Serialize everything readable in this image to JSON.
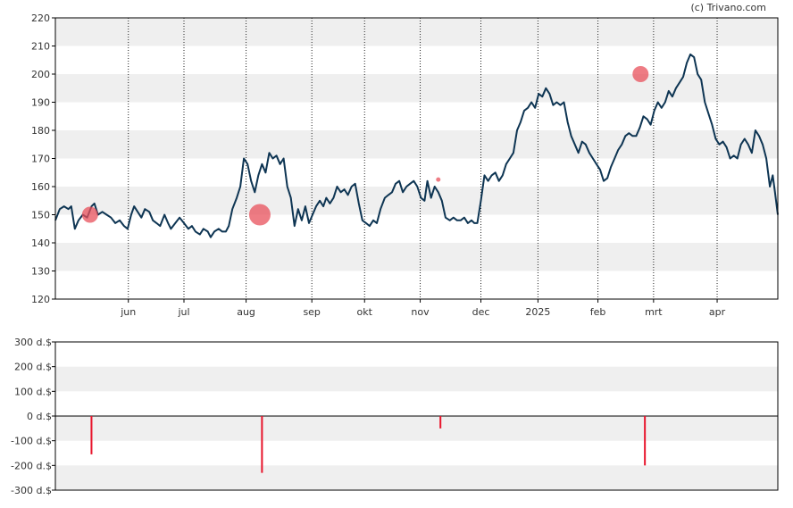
{
  "copyright": "(c) Trivano.com",
  "colors": {
    "price_line": "#0e3553",
    "marker": "#e8505b",
    "band": "#efefef",
    "frame": "#000000",
    "volume_bar": "#e8152c"
  },
  "chart_data": [
    {
      "type": "line",
      "title": "",
      "ylim": [
        120,
        220
      ],
      "yticks": [
        120,
        130,
        140,
        150,
        160,
        170,
        180,
        190,
        200,
        210,
        220
      ],
      "ytick_labels": [
        "120",
        "130",
        "140",
        "150",
        "160",
        "170",
        "180",
        "190",
        "200",
        "210",
        "220"
      ],
      "grid": "vertical-dotted",
      "month_ticks": [
        {
          "label": "jun",
          "t": 10.1
        },
        {
          "label": "jul",
          "t": 17.8
        },
        {
          "label": "aug",
          "t": 26.4
        },
        {
          "label": "sep",
          "t": 35.5
        },
        {
          "label": "okt",
          "t": 42.8
        },
        {
          "label": "nov",
          "t": 50.5
        },
        {
          "label": "dec",
          "t": 58.9
        },
        {
          "label": "2025",
          "t": 66.8
        },
        {
          "label": "feb",
          "t": 75.1
        },
        {
          "label": "mrt",
          "t": 82.8
        },
        {
          "label": "apr",
          "t": 91.6
        }
      ],
      "x_range": [
        0,
        100
      ],
      "series": [
        {
          "points": [
            [
              0,
              148
            ],
            [
              0.6,
              152
            ],
            [
              1.2,
              153
            ],
            [
              1.8,
              152
            ],
            [
              2.2,
              153
            ],
            [
              2.7,
              145
            ],
            [
              3.2,
              148
            ],
            [
              3.8,
              150
            ],
            [
              4.4,
              149
            ],
            [
              5.0,
              153
            ],
            [
              5.4,
              154
            ],
            [
              5.9,
              150
            ],
            [
              6.5,
              151
            ],
            [
              7.1,
              150
            ],
            [
              7.7,
              149
            ],
            [
              8.3,
              147
            ],
            [
              8.9,
              148
            ],
            [
              9.5,
              146
            ],
            [
              10.0,
              145
            ],
            [
              10.5,
              150
            ],
            [
              10.9,
              153
            ],
            [
              11.4,
              151
            ],
            [
              11.9,
              149
            ],
            [
              12.4,
              152
            ],
            [
              13.0,
              151
            ],
            [
              13.5,
              148
            ],
            [
              14.0,
              147
            ],
            [
              14.5,
              146
            ],
            [
              15.1,
              150
            ],
            [
              15.6,
              147
            ],
            [
              16.0,
              145
            ],
            [
              16.6,
              147
            ],
            [
              17.2,
              149
            ],
            [
              17.8,
              147
            ],
            [
              18.4,
              145
            ],
            [
              18.9,
              146
            ],
            [
              19.4,
              144
            ],
            [
              20.0,
              143
            ],
            [
              20.5,
              145
            ],
            [
              21.1,
              144
            ],
            [
              21.5,
              142
            ],
            [
              22.0,
              144
            ],
            [
              22.6,
              145
            ],
            [
              23.1,
              144
            ],
            [
              23.6,
              144
            ],
            [
              24.0,
              146
            ],
            [
              24.5,
              152
            ],
            [
              25.1,
              156
            ],
            [
              25.6,
              160
            ],
            [
              26.1,
              170
            ],
            [
              26.6,
              168
            ],
            [
              27.1,
              162
            ],
            [
              27.6,
              158
            ],
            [
              28.1,
              164
            ],
            [
              28.6,
              168
            ],
            [
              29.1,
              165
            ],
            [
              29.6,
              172
            ],
            [
              30.1,
              170
            ],
            [
              30.6,
              171
            ],
            [
              31.1,
              168
            ],
            [
              31.6,
              170
            ],
            [
              32.1,
              160
            ],
            [
              32.6,
              156
            ],
            [
              33.1,
              146
            ],
            [
              33.6,
              152
            ],
            [
              34.1,
              148
            ],
            [
              34.6,
              153
            ],
            [
              35.1,
              147
            ],
            [
              35.6,
              150
            ],
            [
              36.1,
              153
            ],
            [
              36.6,
              155
            ],
            [
              37.1,
              153
            ],
            [
              37.5,
              156
            ],
            [
              38.0,
              154
            ],
            [
              38.5,
              156
            ],
            [
              39.0,
              160
            ],
            [
              39.5,
              158
            ],
            [
              40.0,
              159
            ],
            [
              40.5,
              157
            ],
            [
              41.0,
              160
            ],
            [
              41.5,
              161
            ],
            [
              42.0,
              154
            ],
            [
              42.5,
              148
            ],
            [
              43.0,
              147
            ],
            [
              43.5,
              146
            ],
            [
              44.0,
              148
            ],
            [
              44.5,
              147
            ],
            [
              45.0,
              152
            ],
            [
              45.6,
              156
            ],
            [
              46.1,
              157
            ],
            [
              46.6,
              158
            ],
            [
              47.1,
              161
            ],
            [
              47.6,
              162
            ],
            [
              48.1,
              158
            ],
            [
              48.6,
              160
            ],
            [
              49.1,
              161
            ],
            [
              49.6,
              162
            ],
            [
              50.1,
              160
            ],
            [
              50.6,
              156
            ],
            [
              51.1,
              155
            ],
            [
              51.5,
              162
            ],
            [
              52.0,
              156
            ],
            [
              52.5,
              160
            ],
            [
              53.0,
              158
            ],
            [
              53.5,
              155
            ],
            [
              54.0,
              149
            ],
            [
              54.6,
              148
            ],
            [
              55.1,
              149
            ],
            [
              55.6,
              148
            ],
            [
              56.1,
              148
            ],
            [
              56.6,
              149
            ],
            [
              57.1,
              147
            ],
            [
              57.6,
              148
            ],
            [
              58.0,
              147
            ],
            [
              58.4,
              147
            ],
            [
              58.9,
              155
            ],
            [
              59.4,
              164
            ],
            [
              59.9,
              162
            ],
            [
              60.4,
              164
            ],
            [
              60.9,
              165
            ],
            [
              61.4,
              162
            ],
            [
              61.9,
              164
            ],
            [
              62.4,
              168
            ],
            [
              62.9,
              170
            ],
            [
              63.4,
              172
            ],
            [
              63.9,
              180
            ],
            [
              64.4,
              183
            ],
            [
              64.9,
              187
            ],
            [
              65.4,
              188
            ],
            [
              65.9,
              190
            ],
            [
              66.4,
              188
            ],
            [
              66.9,
              193
            ],
            [
              67.4,
              192
            ],
            [
              67.9,
              195
            ],
            [
              68.4,
              193
            ],
            [
              68.9,
              189
            ],
            [
              69.4,
              190
            ],
            [
              69.9,
              189
            ],
            [
              70.4,
              190
            ],
            [
              70.9,
              183
            ],
            [
              71.4,
              178
            ],
            [
              71.9,
              175
            ],
            [
              72.4,
              172
            ],
            [
              72.9,
              176
            ],
            [
              73.4,
              175
            ],
            [
              73.9,
              172
            ],
            [
              74.4,
              170
            ],
            [
              74.9,
              168
            ],
            [
              75.4,
              166
            ],
            [
              75.9,
              162
            ],
            [
              76.4,
              163
            ],
            [
              76.9,
              167
            ],
            [
              77.4,
              170
            ],
            [
              77.9,
              173
            ],
            [
              78.4,
              175
            ],
            [
              78.9,
              178
            ],
            [
              79.4,
              179
            ],
            [
              79.9,
              178
            ],
            [
              80.4,
              178
            ],
            [
              80.9,
              181
            ],
            [
              81.4,
              185
            ],
            [
              81.9,
              184
            ],
            [
              82.4,
              182
            ],
            [
              82.9,
              187
            ],
            [
              83.4,
              190
            ],
            [
              83.9,
              188
            ],
            [
              84.4,
              190
            ],
            [
              84.9,
              194
            ],
            [
              85.4,
              192
            ],
            [
              85.9,
              195
            ],
            [
              86.4,
              197
            ],
            [
              86.9,
              199
            ],
            [
              87.4,
              204
            ],
            [
              87.9,
              207
            ],
            [
              88.4,
              206
            ],
            [
              88.9,
              200
            ],
            [
              89.4,
              198
            ],
            [
              89.9,
              190
            ],
            [
              90.4,
              186
            ],
            [
              90.9,
              182
            ],
            [
              91.4,
              177
            ],
            [
              91.9,
              175
            ],
            [
              92.4,
              176
            ],
            [
              92.9,
              174
            ],
            [
              93.4,
              170
            ],
            [
              93.9,
              171
            ],
            [
              94.4,
              170
            ],
            [
              94.9,
              175
            ],
            [
              95.4,
              177
            ],
            [
              95.9,
              175
            ],
            [
              96.4,
              172
            ],
            [
              96.9,
              180
            ],
            [
              97.4,
              178
            ],
            [
              97.9,
              175
            ],
            [
              98.4,
              170
            ],
            [
              98.9,
              160
            ],
            [
              99.3,
              164
            ],
            [
              99.6,
              158
            ],
            [
              100,
              150
            ]
          ]
        }
      ],
      "markers": [
        {
          "t": 4.8,
          "y": 150,
          "size": "medium"
        },
        {
          "t": 28.3,
          "y": 150,
          "size": "large"
        },
        {
          "t": 53.0,
          "y": 162.5,
          "size": "small"
        },
        {
          "t": 81.0,
          "y": 200,
          "size": "medium"
        }
      ]
    },
    {
      "type": "bar",
      "title": "",
      "ylim": [
        -300,
        300
      ],
      "yticks": [
        -300,
        -200,
        -100,
        0,
        100,
        200,
        300
      ],
      "ytick_labels": [
        "-300 d.$",
        "-200 d.$",
        "-100 d.$",
        "0 d.$",
        "100 d.$",
        "200 d.$",
        "300 d.$"
      ],
      "bars": [
        {
          "t": 5.0,
          "value": -155
        },
        {
          "t": 28.6,
          "value": -230
        },
        {
          "t": 53.3,
          "value": -50
        },
        {
          "t": 81.6,
          "value": -200
        }
      ]
    }
  ]
}
